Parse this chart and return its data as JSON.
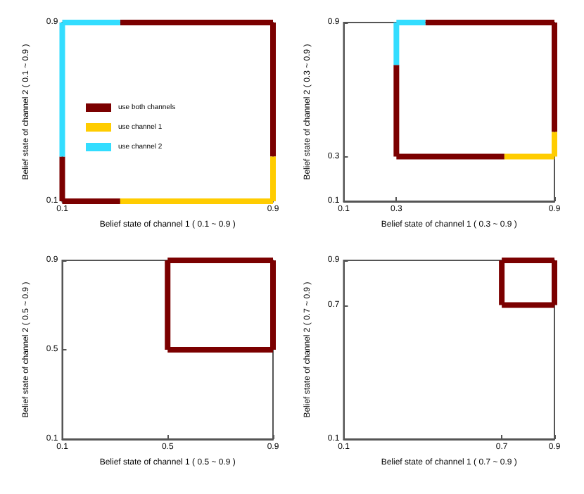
{
  "chart_data": [
    {
      "type": "line",
      "xlabel": "Belief state of channel 1 ( 0.1 ~ 0.9 )",
      "ylabel": "Belief state of channel 2 ( 0.1 ~ 0.9 )",
      "xlim": [
        0.1,
        0.9
      ],
      "ylim": [
        0.1,
        0.9
      ],
      "xticks": [
        0.1,
        0.9
      ],
      "yticks": [
        0.1,
        0.9
      ],
      "grid": false,
      "legend": "left",
      "marker": "none",
      "line_style": "solid",
      "series": [
        {
          "name": "use both channels",
          "color": "#7b0000",
          "x": [
            0.1,
            0.32
          ],
          "values": [
            0.1,
            0.1
          ]
        },
        {
          "color": "#7b0000",
          "x": [
            0.1,
            0.1
          ],
          "values": [
            0.1,
            0.3
          ]
        },
        {
          "color": "#7b0000",
          "x": [
            0.32,
            0.9
          ],
          "values": [
            0.9,
            0.9
          ]
        },
        {
          "color": "#7b0000",
          "x": [
            0.9,
            0.9
          ],
          "values": [
            0.3,
            0.9
          ]
        },
        {
          "name": "use channel 1",
          "color": "#ffcc00",
          "x": [
            0.32,
            0.9
          ],
          "values": [
            0.1,
            0.1
          ]
        },
        {
          "color": "#ffcc00",
          "x": [
            0.9,
            0.9
          ],
          "values": [
            0.1,
            0.3
          ]
        },
        {
          "name": "use channel 2",
          "color": "#33ddff",
          "x": [
            0.1,
            0.32
          ],
          "values": [
            0.9,
            0.9
          ]
        },
        {
          "color": "#33ddff",
          "x": [
            0.1,
            0.1
          ],
          "values": [
            0.3,
            0.9
          ]
        }
      ]
    },
    {
      "type": "line",
      "xlabel": "Belief state of channel 1 ( 0.3 ~ 0.9 )",
      "ylabel": "Belief state of channel 2 ( 0.3 ~ 0.9 )",
      "xlim": [
        0.1,
        0.9
      ],
      "ylim": [
        0.1,
        0.9
      ],
      "xticks": [
        0.1,
        0.3,
        0.9
      ],
      "yticks": [
        0.1,
        0.3,
        0.9
      ],
      "grid": false,
      "legend": false,
      "marker": "none",
      "line_style": "solid",
      "series": [
        {
          "color": "#7b0000",
          "x": [
            0.3,
            0.71
          ],
          "values": [
            0.3,
            0.3
          ]
        },
        {
          "color": "#7b0000",
          "x": [
            0.3,
            0.3
          ],
          "values": [
            0.3,
            0.71
          ]
        },
        {
          "color": "#7b0000",
          "x": [
            0.41,
            0.9
          ],
          "values": [
            0.9,
            0.9
          ]
        },
        {
          "color": "#7b0000",
          "x": [
            0.9,
            0.9
          ],
          "values": [
            0.41,
            0.9
          ]
        },
        {
          "color": "#ffcc00",
          "x": [
            0.71,
            0.9
          ],
          "values": [
            0.3,
            0.3
          ]
        },
        {
          "color": "#ffcc00",
          "x": [
            0.9,
            0.9
          ],
          "values": [
            0.3,
            0.41
          ]
        },
        {
          "color": "#33ddff",
          "x": [
            0.3,
            0.41
          ],
          "values": [
            0.9,
            0.9
          ]
        },
        {
          "color": "#33ddff",
          "x": [
            0.3,
            0.3
          ],
          "values": [
            0.71,
            0.9
          ]
        }
      ]
    },
    {
      "type": "line",
      "xlabel": "Belief state of channel 1 ( 0.5 ~ 0.9 )",
      "ylabel": "Belief state of channel 2 ( 0.5 ~ 0.9 )",
      "xlim": [
        0.1,
        0.9
      ],
      "ylim": [
        0.1,
        0.9
      ],
      "xticks": [
        0.1,
        0.5,
        0.9
      ],
      "yticks": [
        0.1,
        0.5,
        0.9
      ],
      "grid": false,
      "legend": false,
      "marker": "none",
      "line_style": "solid",
      "series": [
        {
          "color": "#7b0000",
          "x": [
            0.5,
            0.9
          ],
          "values": [
            0.5,
            0.5
          ]
        },
        {
          "color": "#7b0000",
          "x": [
            0.5,
            0.9
          ],
          "values": [
            0.9,
            0.9
          ]
        },
        {
          "color": "#7b0000",
          "x": [
            0.5,
            0.5
          ],
          "values": [
            0.5,
            0.9
          ]
        },
        {
          "color": "#7b0000",
          "x": [
            0.9,
            0.9
          ],
          "values": [
            0.5,
            0.9
          ]
        }
      ]
    },
    {
      "type": "line",
      "xlabel": "Belief state of channel 1 ( 0.7 ~ 0.9 )",
      "ylabel": "Belief state of channel 2 ( 0.7 ~ 0.9 )",
      "xlim": [
        0.1,
        0.9
      ],
      "ylim": [
        0.1,
        0.9
      ],
      "xticks": [
        0.1,
        0.7,
        0.9
      ],
      "yticks": [
        0.1,
        0.7,
        0.9
      ],
      "grid": false,
      "legend": false,
      "marker": "none",
      "line_style": "solid",
      "series": [
        {
          "color": "#7b0000",
          "x": [
            0.7,
            0.9
          ],
          "values": [
            0.7,
            0.7
          ]
        },
        {
          "color": "#7b0000",
          "x": [
            0.7,
            0.9
          ],
          "values": [
            0.9,
            0.9
          ]
        },
        {
          "color": "#7b0000",
          "x": [
            0.7,
            0.7
          ],
          "values": [
            0.7,
            0.9
          ]
        },
        {
          "color": "#7b0000",
          "x": [
            0.9,
            0.9
          ],
          "values": [
            0.7,
            0.9
          ]
        }
      ]
    }
  ]
}
